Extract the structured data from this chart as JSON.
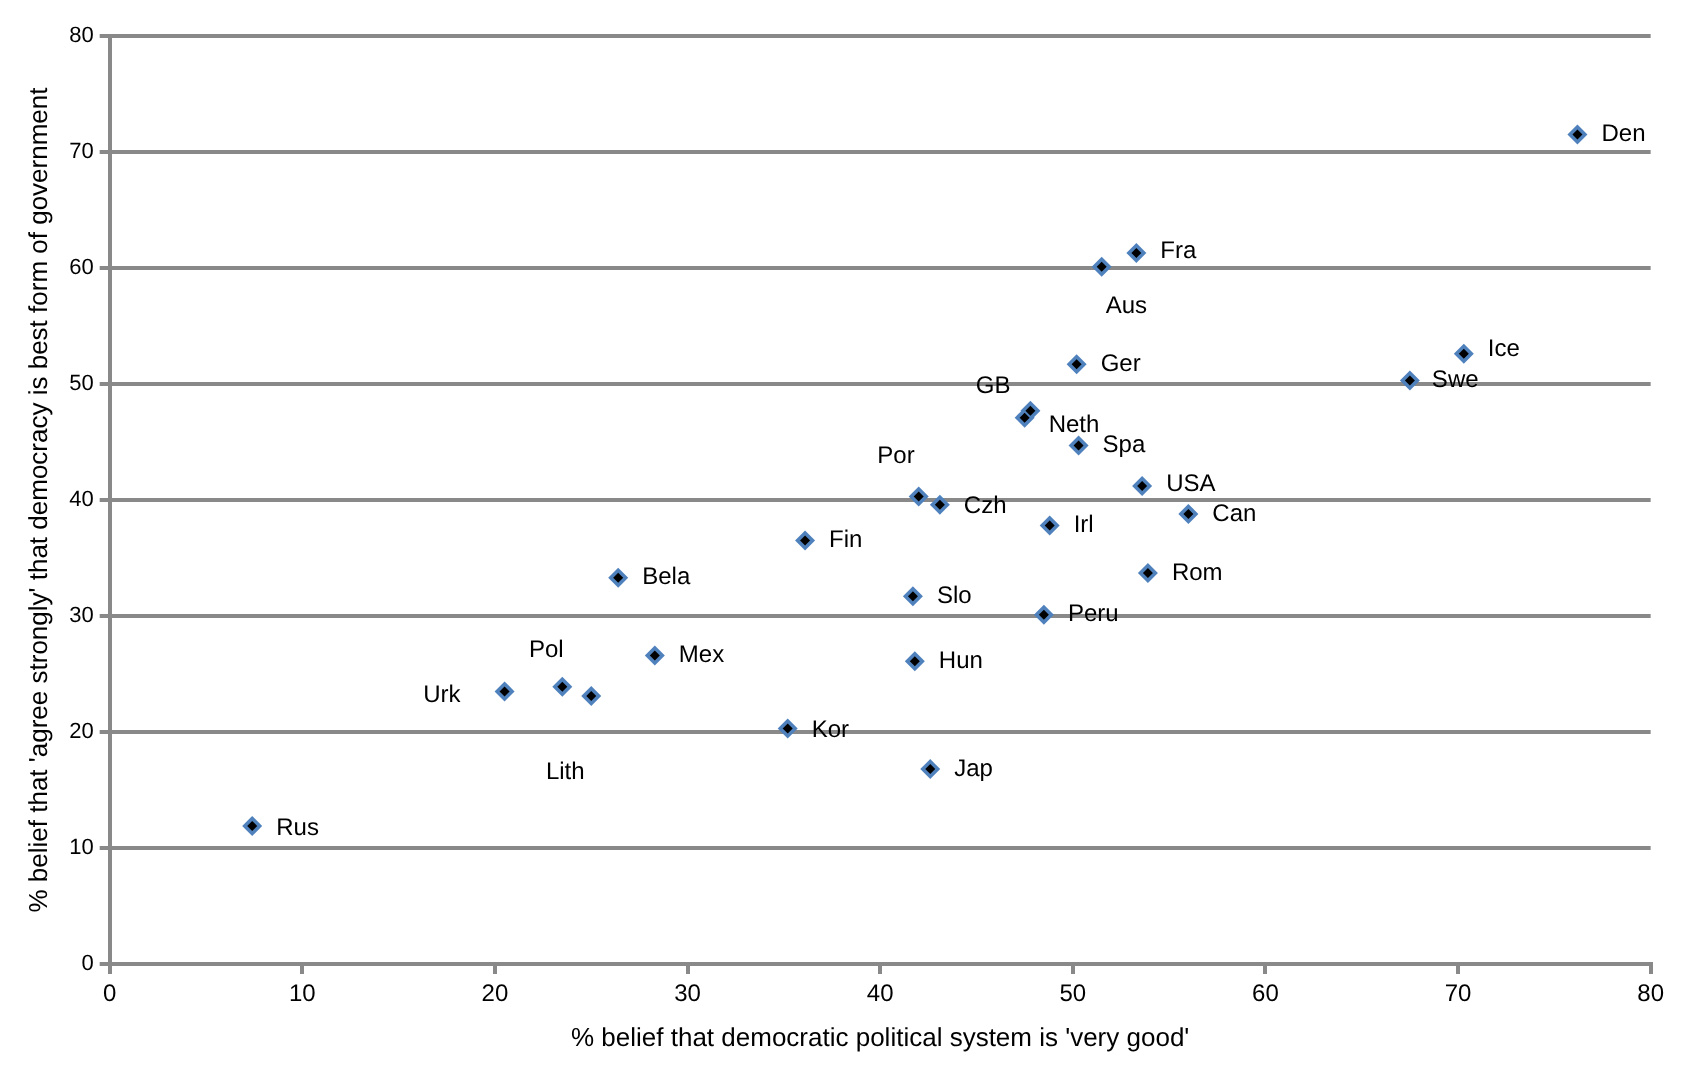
{
  "chart_data": {
    "type": "scatter",
    "xlabel": "% belief that democratic political system is 'very good'",
    "ylabel": "% belief that 'agree strongly' that democracy is best form of government",
    "xlim": [
      0,
      80
    ],
    "xticks": [
      0,
      10,
      20,
      30,
      40,
      50,
      60,
      70,
      80
    ],
    "ylim": [
      0,
      80
    ],
    "yticks": [
      0,
      10,
      20,
      30,
      40,
      50,
      60,
      70,
      80
    ],
    "grid": "y",
    "legend": false,
    "marker": "diamond",
    "series": [
      {
        "color": "#4f81bd",
        "x": [
          76.2,
          53.3,
          51.5,
          50.2,
          70.3,
          67.5,
          47.8,
          47.5,
          50.3,
          42.0,
          43.1,
          53.6,
          56.0,
          48.8,
          53.9,
          41.7,
          48.5,
          41.8,
          42.6,
          36.1,
          26.4,
          28.3,
          20.5,
          23.5,
          25.0,
          35.2,
          7.4
        ],
        "values": [
          71.5,
          61.3,
          60.1,
          51.7,
          52.6,
          50.3,
          47.7,
          47.1,
          44.7,
          40.3,
          39.6,
          41.2,
          38.8,
          37.8,
          33.7,
          31.7,
          30.1,
          26.1,
          16.8,
          36.5,
          33.3,
          26.6,
          23.5,
          23.9,
          23.1,
          20.3,
          11.9
        ]
      }
    ],
    "annotations": [
      {
        "text": "Den",
        "x": 76.2,
        "y": 71.5
      },
      {
        "text": "Fra",
        "x": 53.3,
        "y": 61.3
      },
      {
        "text": "Aus",
        "x": 51.5,
        "y": 60.1
      },
      {
        "text": "Ger",
        "x": 50.2,
        "y": 51.7
      },
      {
        "text": "Ice",
        "x": 70.3,
        "y": 52.6
      },
      {
        "text": "Swe",
        "x": 67.5,
        "y": 50.3
      },
      {
        "text": "GB",
        "x": 47.8,
        "y": 47.7
      },
      {
        "text": "Neth",
        "x": 47.5,
        "y": 47.1
      },
      {
        "text": "Spa",
        "x": 50.3,
        "y": 44.7
      },
      {
        "text": "Por",
        "x": 42.0,
        "y": 40.3
      },
      {
        "text": "Czh",
        "x": 43.1,
        "y": 39.6
      },
      {
        "text": "USA",
        "x": 53.6,
        "y": 41.2
      },
      {
        "text": "Can",
        "x": 56.0,
        "y": 38.8
      },
      {
        "text": "Irl",
        "x": 48.8,
        "y": 37.8
      },
      {
        "text": "Rom",
        "x": 53.9,
        "y": 33.7
      },
      {
        "text": "Slo",
        "x": 41.7,
        "y": 31.7
      },
      {
        "text": "Peru",
        "x": 48.5,
        "y": 30.1
      },
      {
        "text": "Hun",
        "x": 41.8,
        "y": 26.1
      },
      {
        "text": "Jap",
        "x": 42.6,
        "y": 16.8
      },
      {
        "text": "Fin",
        "x": 36.1,
        "y": 36.5
      },
      {
        "text": "Bela",
        "x": 26.4,
        "y": 33.3
      },
      {
        "text": "Mex",
        "x": 28.3,
        "y": 26.6
      },
      {
        "text": "Urk",
        "x": 20.5,
        "y": 23.5
      },
      {
        "text": "Pol",
        "x": 23.5,
        "y": 23.9
      },
      {
        "text": "Lith",
        "x": 25.0,
        "y": 23.1
      },
      {
        "text": "Kor",
        "x": 35.2,
        "y": 20.3
      },
      {
        "text": "Rus",
        "x": 7.4,
        "y": 11.9
      }
    ]
  }
}
